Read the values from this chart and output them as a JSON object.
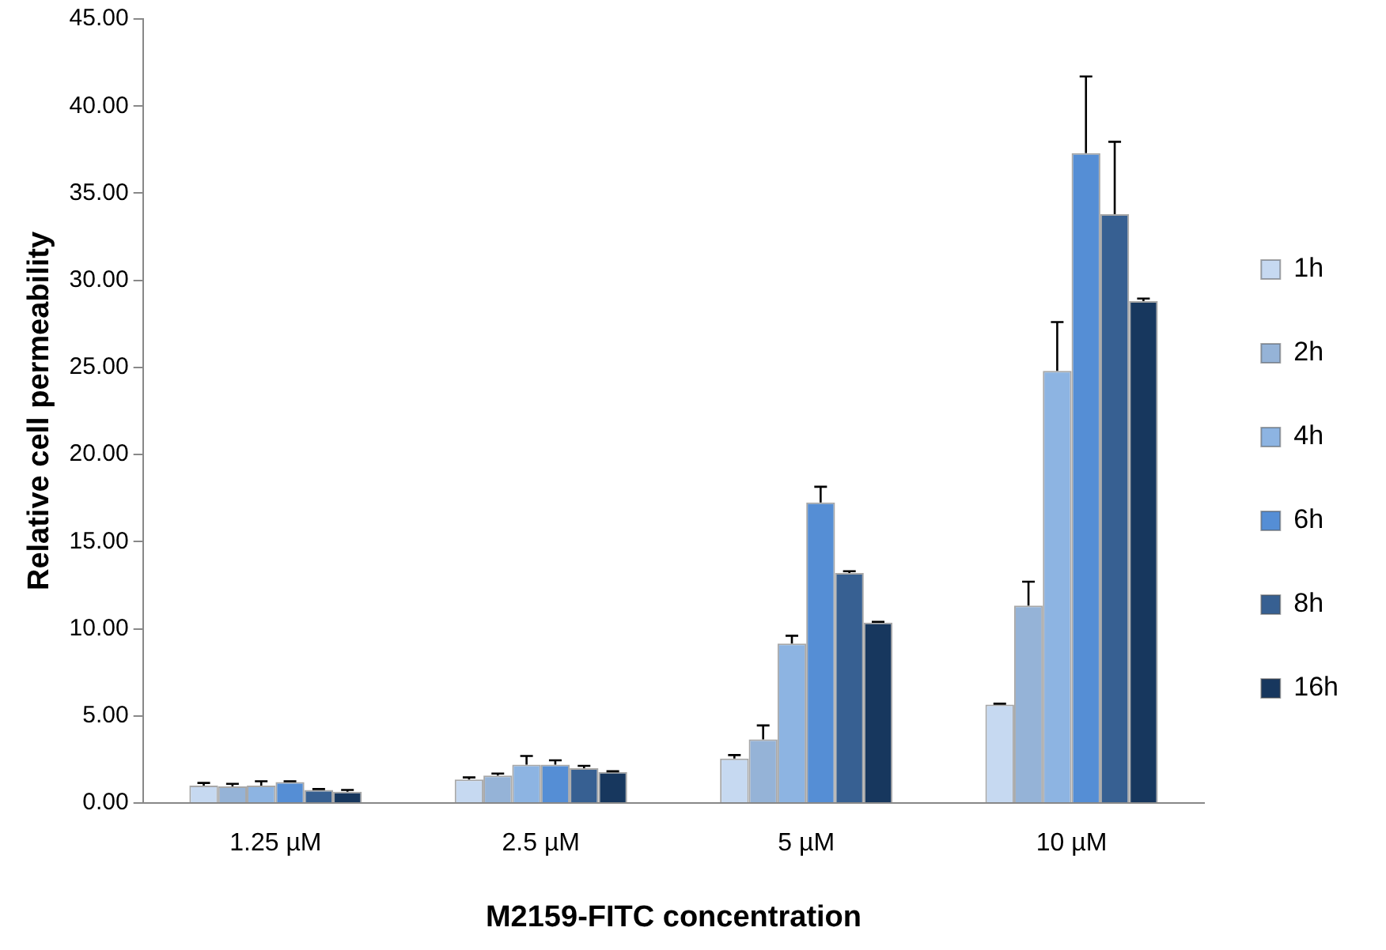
{
  "chart_data": {
    "type": "bar",
    "xlabel": "M2159-FITC concentration",
    "ylabel": "Relative cell permeability",
    "categories": [
      "1.25 µM",
      "2.5 µM",
      "5 µM",
      "10 µM"
    ],
    "series": [
      {
        "name": "1h",
        "color": "#c6d9f1",
        "values": [
          1.0,
          1.35,
          2.55,
          5.65
        ],
        "errors": [
          [
            1.0,
            1.15
          ],
          [
            1.35,
            1.47
          ],
          [
            2.55,
            2.75
          ],
          [
            5.65,
            5.7
          ]
        ]
      },
      {
        "name": "2h",
        "color": "#95b3d7",
        "values": [
          0.95,
          1.58,
          3.65,
          11.33
        ],
        "errors": [
          [
            0.95,
            1.1
          ],
          [
            1.58,
            1.69
          ],
          [
            3.65,
            4.45
          ],
          [
            11.33,
            12.7
          ]
        ]
      },
      {
        "name": "4h",
        "color": "#8db4e2",
        "values": [
          1.0,
          2.2,
          9.15,
          24.8
        ],
        "errors": [
          [
            1.0,
            1.25
          ],
          [
            2.2,
            2.7
          ],
          [
            9.15,
            9.6
          ],
          [
            24.8,
            27.6
          ]
        ]
      },
      {
        "name": "6h",
        "color": "#558ed5",
        "values": [
          1.2,
          2.2,
          17.25,
          37.3
        ],
        "errors": [
          [
            1.2,
            1.25
          ],
          [
            2.2,
            2.45
          ],
          [
            17.25,
            18.15
          ],
          [
            37.3,
            41.7
          ]
        ]
      },
      {
        "name": "8h",
        "color": "#376092",
        "values": [
          0.75,
          2.0,
          13.2,
          33.8
        ],
        "errors": [
          [
            0.75,
            0.8
          ],
          [
            2.0,
            2.13
          ],
          [
            13.2,
            13.3
          ],
          [
            33.8,
            37.95
          ]
        ]
      },
      {
        "name": "16h",
        "color": "#17375e",
        "values": [
          0.65,
          1.78,
          10.35,
          28.8
        ],
        "errors": [
          [
            0.65,
            0.75
          ],
          [
            1.78,
            1.82
          ],
          [
            10.35,
            10.4
          ],
          [
            28.8,
            28.95
          ]
        ]
      }
    ],
    "ylim": [
      0,
      45
    ],
    "yticks": [
      {
        "value": 0,
        "label": "0.00"
      },
      {
        "value": 5,
        "label": "5.00"
      },
      {
        "value": 10,
        "label": "10.00"
      },
      {
        "value": 15,
        "label": "15.00"
      },
      {
        "value": 20,
        "label": "20.00"
      },
      {
        "value": 25,
        "label": "25.00"
      },
      {
        "value": 30,
        "label": "30.00"
      },
      {
        "value": 35,
        "label": "35.00"
      },
      {
        "value": 40,
        "label": "40.00"
      },
      {
        "value": 45,
        "label": "45.00"
      }
    ],
    "grid": false,
    "legend": "right"
  }
}
